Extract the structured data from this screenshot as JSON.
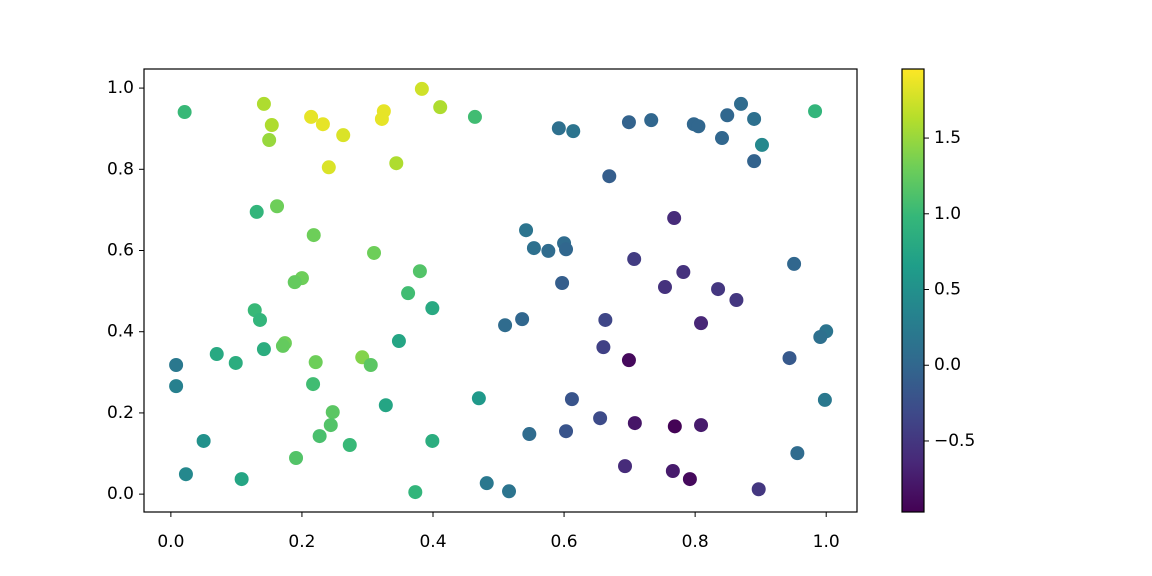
{
  "chart_data": {
    "type": "scatter",
    "x": [
      0.021,
      0.142,
      0.154,
      0.15,
      0.214,
      0.232,
      0.263,
      0.241,
      0.325,
      0.322,
      0.383,
      0.411,
      0.344,
      0.464,
      0.131,
      0.162,
      0.218,
      0.31,
      0.2,
      0.189,
      0.38,
      0.362,
      0.399,
      0.128,
      0.136,
      0.174,
      0.171,
      0.142,
      0.07,
      0.099,
      0.221,
      0.292,
      0.305,
      0.348,
      0.008,
      0.008,
      0.217,
      0.328,
      0.247,
      0.244,
      0.227,
      0.273,
      0.191,
      0.05,
      0.023,
      0.108,
      0.373,
      0.399,
      0.47,
      0.482,
      0.516,
      0.547,
      0.612,
      0.603,
      0.655,
      0.693,
      0.708,
      0.769,
      0.809,
      0.766,
      0.792,
      0.897,
      0.956,
      0.998,
      0.944,
      1.0,
      0.991,
      0.951,
      0.902,
      0.983,
      0.89,
      0.87,
      0.849,
      0.841,
      0.89,
      0.798,
      0.805,
      0.733,
      0.699,
      0.592,
      0.614,
      0.669,
      0.768,
      0.542,
      0.554,
      0.576,
      0.6,
      0.603,
      0.597,
      0.707,
      0.782,
      0.754,
      0.835,
      0.863,
      0.809,
      0.663,
      0.66,
      0.699,
      0.51,
      0.536
    ],
    "y": [
      0.941,
      0.961,
      0.909,
      0.872,
      0.929,
      0.911,
      0.884,
      0.805,
      0.943,
      0.924,
      0.998,
      0.953,
      0.815,
      0.929,
      0.695,
      0.709,
      0.638,
      0.594,
      0.532,
      0.522,
      0.549,
      0.495,
      0.458,
      0.453,
      0.429,
      0.372,
      0.365,
      0.357,
      0.345,
      0.323,
      0.325,
      0.337,
      0.318,
      0.377,
      0.318,
      0.266,
      0.271,
      0.219,
      0.202,
      0.17,
      0.143,
      0.121,
      0.089,
      0.131,
      0.049,
      0.037,
      0.005,
      0.131,
      0.236,
      0.027,
      0.007,
      0.148,
      0.234,
      0.155,
      0.187,
      0.069,
      0.175,
      0.167,
      0.17,
      0.057,
      0.037,
      0.012,
      0.101,
      0.232,
      0.335,
      0.401,
      0.387,
      0.567,
      0.86,
      0.943,
      0.924,
      0.961,
      0.933,
      0.877,
      0.82,
      0.911,
      0.906,
      0.921,
      0.916,
      0.901,
      0.894,
      0.783,
      0.68,
      0.65,
      0.606,
      0.599,
      0.618,
      0.603,
      0.52,
      0.579,
      0.547,
      0.51,
      0.505,
      0.478,
      0.421,
      0.429,
      0.362,
      0.33,
      0.416,
      0.431
    ],
    "c": [
      1.0,
      1.6,
      1.6,
      1.5,
      1.85,
      1.85,
      1.8,
      1.8,
      1.85,
      1.85,
      1.75,
      1.6,
      1.6,
      1.05,
      0.95,
      1.3,
      1.3,
      1.3,
      1.3,
      1.25,
      1.15,
      1.05,
      0.8,
      1.0,
      0.95,
      1.3,
      1.25,
      0.85,
      0.8,
      0.85,
      1.3,
      1.4,
      1.2,
      0.75,
      0.2,
      0.3,
      1.05,
      0.75,
      1.2,
      1.15,
      1.1,
      1.0,
      1.15,
      0.5,
      0.4,
      0.75,
      0.95,
      0.85,
      0.6,
      0.2,
      0.15,
      0.05,
      -0.2,
      -0.2,
      -0.3,
      -0.6,
      -0.8,
      -0.95,
      -0.75,
      -0.75,
      -0.9,
      -0.5,
      0.05,
      0.2,
      -0.15,
      0.15,
      0.1,
      0.0,
      0.4,
      0.95,
      0.1,
      0.05,
      0.0,
      0.0,
      -0.05,
      0.0,
      0.0,
      0.0,
      -0.05,
      0.1,
      0.15,
      -0.1,
      -0.6,
      0.15,
      0.1,
      0.05,
      0.05,
      0.0,
      -0.1,
      -0.45,
      -0.55,
      -0.55,
      -0.5,
      -0.5,
      -0.65,
      -0.35,
      -0.4,
      -0.9,
      0.05,
      0.0
    ],
    "colormap": "viridis",
    "xlim": [
      -0.041,
      1.047
    ],
    "ylim": [
      -0.044,
      1.047
    ],
    "clim": [
      -0.969,
      1.956
    ],
    "xticks": [
      {
        "value": 0,
        "label": "0.0"
      },
      0.2,
      0.4,
      0.6,
      0.8,
      {
        "value": 1,
        "label": "1.0"
      }
    ],
    "yticks": [
      {
        "value": 0,
        "label": "0.0"
      },
      0.2,
      0.4,
      0.6,
      0.8,
      {
        "value": 1,
        "label": "1.0"
      }
    ],
    "cticks": [
      {
        "value": -0.5,
        "label": "−0.5"
      },
      {
        "value": 0,
        "label": "0.0"
      },
      0.5,
      {
        "value": 1,
        "label": "1.0"
      },
      1.5
    ]
  }
}
